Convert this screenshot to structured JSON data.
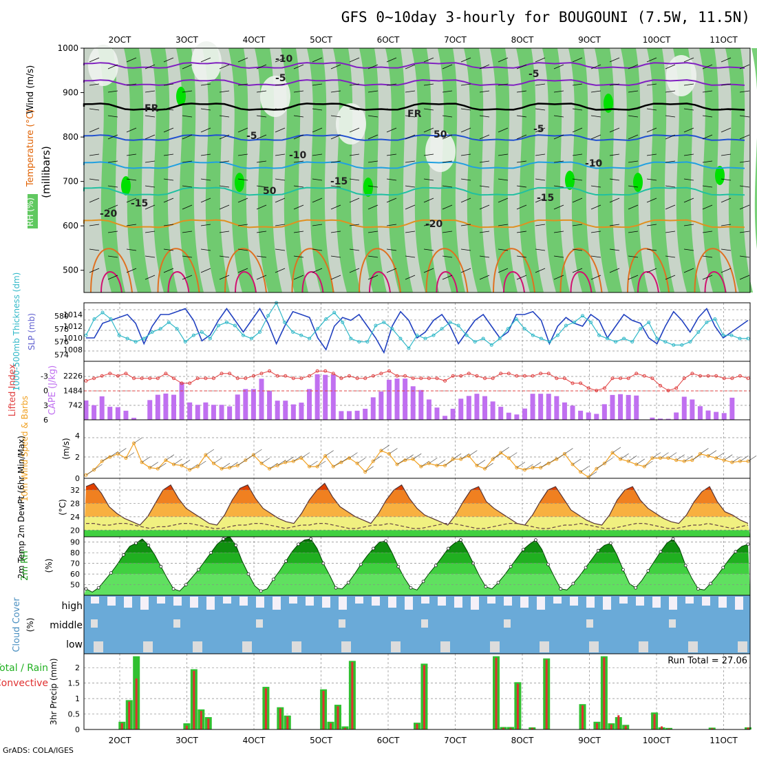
{
  "title": "GFS 0~10day 3-hourly for BOUGOUNI (7.5W, 11.5N)",
  "footer": "GrADS: COLA/IGES",
  "colors": {
    "rh_light": "#c8d4c8",
    "rh_mid": "#60c860",
    "rh_high": "#00e000",
    "wind_speed": "#f0a020",
    "slp": "#2040c0",
    "thickness": "#30b8c8",
    "lifted": "#e04040",
    "cape": "#c070f0",
    "temp_hot": "#e04000",
    "rh2m": "#00a000",
    "cloud": "#6aaad8",
    "precip_total": "#30c030",
    "precip_conv": "#e03030",
    "frame": "#000000"
  },
  "chart_data": [
    {
      "type": "heatmap",
      "name": "vertical-cross-section",
      "labels": {
        "rh": "RH (%)",
        "temp": "Temperature (°C)",
        "wind": "Wind (m/s)",
        "unit": "(millibars)"
      },
      "y_ticks": [
        500,
        600,
        700,
        800,
        900,
        1000
      ],
      "ylim": [
        450,
        1000
      ],
      "x_ticks": [
        "2OCT",
        "3OCT",
        "4OCT",
        "5OCT",
        "6OCT",
        "7OCT",
        "8OCT",
        "9OCT",
        "10OCT",
        "11OCT"
      ],
      "isotherm_labels": [
        "-10",
        "-5",
        "-5",
        "FR",
        "FR",
        "-5",
        "-5",
        "-10",
        "-10",
        "-15",
        "-15",
        "-15",
        "-20",
        "-20",
        "50",
        "50"
      ]
    },
    {
      "type": "line",
      "name": "slp-thickness",
      "left_label": "1000-500mb Thickness (dm)",
      "right_label": "SLP (mb)",
      "left_ticks": [
        574,
        576,
        578,
        580
      ],
      "right_ticks": [
        1008,
        1010,
        1012,
        1014
      ],
      "slp": [
        1010,
        1010,
        1012.5,
        1013,
        1013.5,
        1014,
        1012.5,
        1009,
        1012,
        1014,
        1014,
        1014.5,
        1015,
        1013,
        1009.5,
        1010.5,
        1013,
        1015,
        1013,
        1011,
        1013,
        1015,
        1012.5,
        1009,
        1012,
        1014.5,
        1014,
        1013.5,
        1010,
        1008,
        1012,
        1013.5,
        1013,
        1014,
        1012,
        1010,
        1007.5,
        1012,
        1014.5,
        1013,
        1010,
        1011,
        1013,
        1014,
        1012,
        1009,
        1011,
        1013,
        1014,
        1012,
        1010,
        1011,
        1014,
        1014,
        1014.5,
        1013,
        1009,
        1012,
        1013.5,
        1012.5,
        1012,
        1014,
        1013,
        1010,
        1012,
        1014,
        1013,
        1012.5,
        1010,
        1009,
        1012,
        1014.5,
        1013,
        1011,
        1013.5,
        1015,
        1012,
        1010,
        1011,
        1012,
        1013
      ],
      "thickness": [
        577,
        579.5,
        580.5,
        579.5,
        577,
        576.5,
        576,
        576.5,
        577.5,
        578,
        579,
        578,
        576,
        577,
        577.5,
        576.5,
        578.5,
        579,
        578.5,
        577,
        576.5,
        577.5,
        580,
        582,
        579,
        577.5,
        577,
        576.5,
        578,
        579.5,
        580.5,
        579,
        576.5,
        576,
        576,
        578.5,
        579,
        578,
        576.5,
        575,
        577,
        576.5,
        577,
        578,
        579,
        578.5,
        577,
        576,
        576.5,
        575.5,
        576.5,
        578,
        579.5,
        578,
        577,
        576.5,
        576,
        577,
        578.5,
        579,
        580,
        579,
        577,
        576.5,
        576,
        576.5,
        576,
        578,
        579,
        576.5,
        576,
        575.5,
        575.5,
        576,
        577.5,
        579,
        579.5,
        577,
        577,
        576.5,
        576.5
      ]
    },
    {
      "type": "bar",
      "name": "cape-lifted-index",
      "left_label": "Lifted Index",
      "right_label": "CAPE (J/kg)",
      "left_ticks": [
        -3,
        0,
        3,
        6
      ],
      "right_ticks": [
        742,
        1484,
        2226
      ],
      "cape": [
        980,
        740,
        1190,
        660,
        640,
        460,
        100,
        0,
        1000,
        1270,
        1330,
        1270,
        1890,
        880,
        760,
        880,
        760,
        760,
        680,
        1280,
        1560,
        1560,
        2080,
        1450,
        970,
        970,
        780,
        870,
        1560,
        2310,
        2280,
        2310,
        440,
        440,
        460,
        560,
        1140,
        1430,
        2030,
        2090,
        2090,
        1700,
        1510,
        1030,
        620,
        200,
        560,
        1070,
        1210,
        1320,
        1200,
        930,
        660,
        360,
        270,
        570,
        1320,
        1320,
        1320,
        1200,
        880,
        720,
        460,
        370,
        300,
        790,
        1260,
        1300,
        1260,
        1230,
        0,
        110,
        60,
        50,
        370,
        1170,
        1030,
        690,
        470,
        400,
        340,
        1120,
        0,
        0
      ],
      "lifted_index": [
        -2,
        -2.5,
        -3,
        -3.5,
        -3,
        -3.5,
        -2.5,
        -2.5,
        -2.5,
        -2.5,
        -3.5,
        -2.5,
        -1.5,
        -1.5,
        -2.5,
        -2.5,
        -2.5,
        -3.5,
        -3.5,
        -2.5,
        -2.5,
        -3,
        -3.5,
        -4,
        -3,
        -3,
        -2.5,
        -2.5,
        -3,
        -4,
        -4,
        -3.5,
        -2.5,
        -3,
        -2.5,
        -2.5,
        -3,
        -3.5,
        -4,
        -3,
        -3,
        -2.5,
        -2.5,
        -2.5,
        -2.5,
        -2,
        -3,
        -3,
        -3.5,
        -3,
        -2.5,
        -2.5,
        -3.5,
        -3.5,
        -3,
        -3,
        -3,
        -3.5,
        -3.5,
        -2.5,
        -2.5,
        -1.5,
        -1.5,
        -0.5,
        0,
        -0.5,
        -2.5,
        -2.5,
        -2.5,
        -3.5,
        -3,
        -2.5,
        -1,
        0,
        -0.5,
        -2.5,
        -3.5,
        -3,
        -3,
        -3,
        -2.5,
        -2.5,
        -3,
        -2.5
      ]
    },
    {
      "type": "line",
      "name": "wind-10m",
      "left_label": "10m Wind Speed & Barbs",
      "unit": "(m/s)",
      "left_ticks": [
        0,
        2,
        4
      ],
      "values": [
        0.3,
        0.8,
        1.6,
        2,
        2.3,
        1.9,
        3.3,
        1.5,
        1,
        0.9,
        1.7,
        1.3,
        1.2,
        0.8,
        1.1,
        2.2,
        1.4,
        0.9,
        1,
        1.2,
        1.7,
        2.2,
        1.4,
        0.9,
        1.2,
        1.5,
        1.6,
        1.9,
        1.1,
        1.1,
        2.1,
        1.1,
        1.5,
        1.9,
        1.4,
        0.6,
        1.6,
        2.6,
        2.3,
        1.3,
        1.7,
        1.8,
        1.1,
        1.4,
        1.2,
        1.2,
        1.8,
        1.8,
        2.1,
        1.2,
        0.9,
        1.8,
        2.4,
        1.9,
        1,
        0.8,
        1,
        1,
        1.4,
        1.8,
        2.3,
        1.3,
        0.6,
        0.1,
        0.9,
        1.4,
        2.4,
        1.8,
        1.6,
        1.3,
        1.1,
        1.9,
        1.9,
        1.9,
        1.7,
        1.6,
        1.7,
        2.3,
        2.1,
        1.9,
        1.7,
        1.5,
        1.6,
        1.6
      ]
    },
    {
      "type": "area",
      "name": "temperature-2m",
      "left_label": "2m Temp 2m DewPt (6hr Min/Max)",
      "unit": "(°C)",
      "left_ticks": [
        20,
        24,
        28,
        32
      ],
      "temp": [
        33,
        34,
        31,
        27,
        25,
        23.5,
        22.5,
        21.5,
        24,
        28,
        32,
        33.5,
        29.5,
        26.5,
        25,
        23.5,
        22,
        21.5,
        24.5,
        29,
        32.5,
        33.5,
        29.5,
        26.5,
        25,
        23.5,
        22.5,
        22,
        25,
        29,
        32,
        34,
        30,
        27,
        25.5,
        24,
        23,
        22,
        25,
        29,
        32,
        33.5,
        29.5,
        26.5,
        24.5,
        23.5,
        22.5,
        21.5,
        24.5,
        28.5,
        32,
        33,
        28.5,
        26.5,
        25,
        23.5,
        22,
        21.5,
        24.5,
        28.5,
        32,
        33,
        29.5,
        26,
        24.5,
        23,
        22,
        21.5,
        24.5,
        29,
        32,
        33,
        29,
        26.5,
        25,
        23.5,
        22.5,
        22,
        24.5,
        28.5,
        31.5,
        33,
        28.5,
        25.5,
        24.5,
        23,
        22
      ],
      "dewpt": [
        22,
        22,
        21.5,
        21.5,
        22,
        22,
        21.5,
        21,
        20.5,
        21,
        21,
        21.5,
        22,
        22,
        21.5,
        21,
        20.5,
        20.5,
        21,
        21.5,
        21.5,
        22,
        22,
        21.5,
        21,
        20.5,
        21,
        21.5,
        21.5,
        22,
        22,
        21.5,
        21,
        20.5,
        20.5,
        21,
        21.5,
        21.5,
        22,
        21.5,
        21,
        20.5,
        20.5,
        21,
        21.5,
        22,
        22,
        21.5,
        21,
        20.5,
        20.5,
        21,
        21.5,
        22,
        22,
        21.5,
        21,
        20.5,
        20.5,
        21,
        21.5,
        21.5,
        22,
        21.5,
        21,
        20.5,
        20.5,
        21,
        21.5,
        22,
        22,
        21.5,
        21,
        20.5,
        20.5,
        21,
        21.5,
        21.5,
        22,
        21.5,
        21,
        20.5,
        21,
        21.5
      ]
    },
    {
      "type": "area",
      "name": "rh-2m",
      "left_label": "2m RH",
      "unit": "(%)",
      "left_ticks": [
        50,
        60,
        70,
        80,
        90
      ],
      "values": [
        46,
        43,
        47,
        54,
        61,
        69,
        78,
        86,
        89,
        93,
        87,
        78,
        67,
        56,
        46,
        44,
        50,
        57,
        64,
        72,
        80,
        88,
        93,
        95,
        87,
        72,
        60,
        49,
        44,
        46,
        55,
        63,
        72,
        81,
        88,
        92,
        93,
        84,
        70,
        59,
        47,
        46,
        52,
        60,
        69,
        77,
        84,
        90,
        91,
        80,
        67,
        56,
        47,
        45,
        53,
        61,
        68,
        76,
        84,
        89,
        92,
        82,
        70,
        58,
        48,
        46,
        52,
        59,
        67,
        75,
        83,
        88,
        92,
        83,
        69,
        57,
        46,
        45,
        51,
        58,
        66,
        74,
        82,
        87,
        89,
        78,
        64,
        51,
        47,
        54,
        63,
        72,
        81,
        89,
        93,
        84,
        68,
        56,
        46,
        45,
        51,
        58,
        66,
        74,
        81,
        86,
        88
      ]
    },
    {
      "type": "heatmap",
      "name": "cloud-cover",
      "left_label": "Cloud Cover",
      "unit": "(%)",
      "rows": [
        "high",
        "middle",
        "low"
      ]
    },
    {
      "type": "bar",
      "name": "precip-3hr",
      "left_label": "3hr Precip (mm)",
      "left_label2": "Total / Rain",
      "left_label3": "Convective",
      "left_ticks": [
        0,
        0.5,
        1,
        1.5,
        2
      ],
      "run_total_label": "Run Total = 27.06",
      "total": [
        0,
        0,
        0,
        0,
        0,
        0.25,
        0.95,
        2.37,
        0,
        0,
        0,
        0,
        0,
        0,
        0.2,
        1.95,
        0.65,
        0.4,
        0,
        0,
        0,
        0,
        0,
        0,
        0,
        1.38,
        0,
        0.72,
        0.45,
        0,
        0,
        0,
        0,
        1.3,
        0.25,
        0.8,
        0.1,
        2.22,
        0,
        0,
        0,
        0,
        0,
        0,
        0,
        0,
        0.22,
        2.13,
        0,
        0,
        0,
        0,
        0,
        0,
        0,
        0,
        0,
        2.37,
        0.08,
        0.08,
        1.53,
        0,
        0.07,
        0,
        2.3,
        0,
        0,
        0,
        0,
        0.82,
        0,
        0.25,
        2.37,
        0.2,
        0.4,
        0.15,
        0,
        0,
        0,
        0.55,
        0.07,
        0.05,
        0,
        0,
        0,
        0,
        0,
        0.06,
        0,
        0,
        0,
        0,
        0.07
      ],
      "convective": [
        0,
        0,
        0,
        0,
        0,
        0.2,
        0.9,
        1.65,
        0,
        0,
        0,
        0,
        0,
        0,
        0.12,
        1.9,
        0.6,
        0.35,
        0,
        0,
        0,
        0,
        0,
        0,
        0,
        1.33,
        0,
        0.68,
        0.42,
        0,
        0,
        0,
        0,
        1.25,
        0.2,
        0.75,
        0.05,
        2.18,
        0,
        0,
        0,
        0,
        0,
        0,
        0,
        0,
        0.18,
        2.08,
        0,
        0,
        0,
        0,
        0,
        0,
        0,
        0,
        0,
        2.32,
        0.05,
        0.05,
        1.48,
        0,
        0.05,
        0,
        2.26,
        0,
        0,
        0,
        0,
        0.78,
        0,
        0.2,
        2.33,
        0.16,
        0.46,
        0.12,
        0,
        0,
        0,
        0.5,
        0.1,
        0.03,
        0,
        0,
        0,
        0,
        0,
        0.04,
        0,
        0,
        0,
        0,
        0.06
      ]
    }
  ]
}
